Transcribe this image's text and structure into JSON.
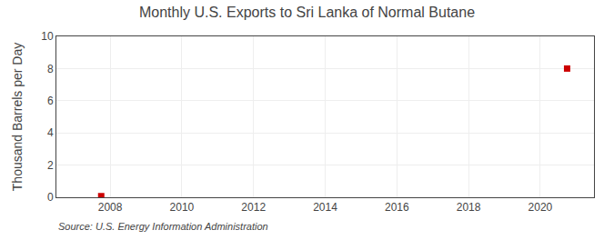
{
  "chart_data": {
    "type": "scatter",
    "title": "Monthly U.S. Exports to Sri Lanka of Normal Butane",
    "ylabel": "Thousand Barrels per Day",
    "annotations": [
      "Source: U.S. Energy Information Administration"
    ],
    "x": [
      2007.75,
      2020.75
    ],
    "values": [
      0.07,
      8.0
    ],
    "color": "#cc0000",
    "marker": "square",
    "xlim": [
      2006.5,
      2021.5
    ],
    "xticks": [
      2008,
      2010,
      2012,
      2014,
      2016,
      2018,
      2020
    ],
    "ylim": [
      0,
      10
    ],
    "yticks": [
      0,
      2,
      4,
      6,
      8,
      10
    ],
    "grid": true
  }
}
